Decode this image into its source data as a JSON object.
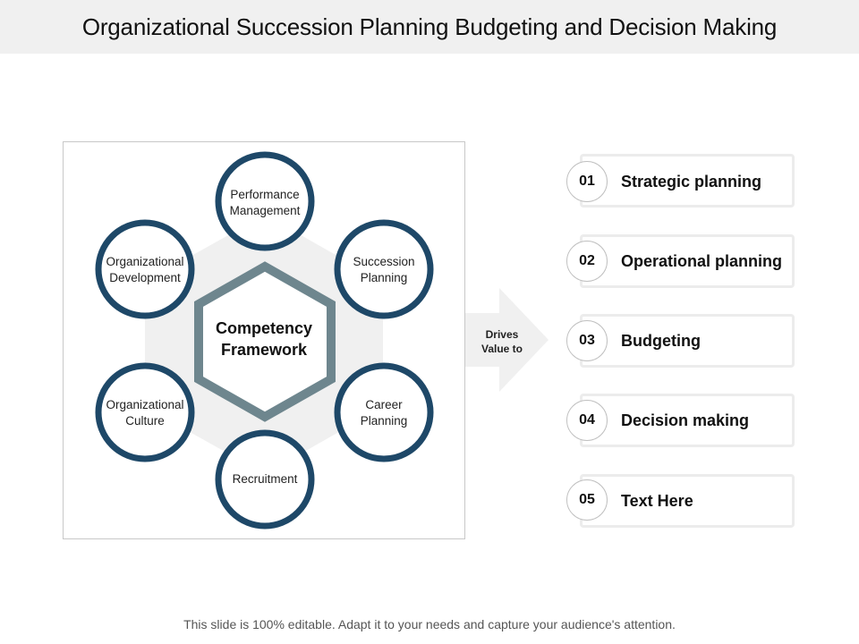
{
  "title": "Organizational Succession Planning Budgeting and Decision Making",
  "diagram": {
    "center": {
      "line1": "Competency",
      "line2": "Framework"
    },
    "nodes": [
      {
        "line1": "Performance",
        "line2": "Management"
      },
      {
        "line1": "Succession",
        "line2": "Planning"
      },
      {
        "line1": "Career",
        "line2": "Planning"
      },
      {
        "line1": "Recruitment",
        "line2": ""
      },
      {
        "line1": "Organizational",
        "line2": "Culture"
      },
      {
        "line1": "Organizational",
        "line2": "Development"
      }
    ],
    "arrow": {
      "line1": "Drives",
      "line2": "Value to"
    }
  },
  "items": [
    {
      "num": "01",
      "label": "Strategic planning"
    },
    {
      "num": "02",
      "label": "Operational planning"
    },
    {
      "num": "03",
      "label": "Budgeting"
    },
    {
      "num": "04",
      "label": "Decision making"
    },
    {
      "num": "05",
      "label": "Text Here"
    }
  ],
  "footer": "This slide is 100% editable. Adapt it to your needs and capture your audience's attention.",
  "colors": {
    "ring": "#1e4868",
    "hexagon": "#6e868e",
    "background_hexagon": "#f0f0f0",
    "arrow": "#f0f0f0",
    "card_border": "#ececec"
  }
}
